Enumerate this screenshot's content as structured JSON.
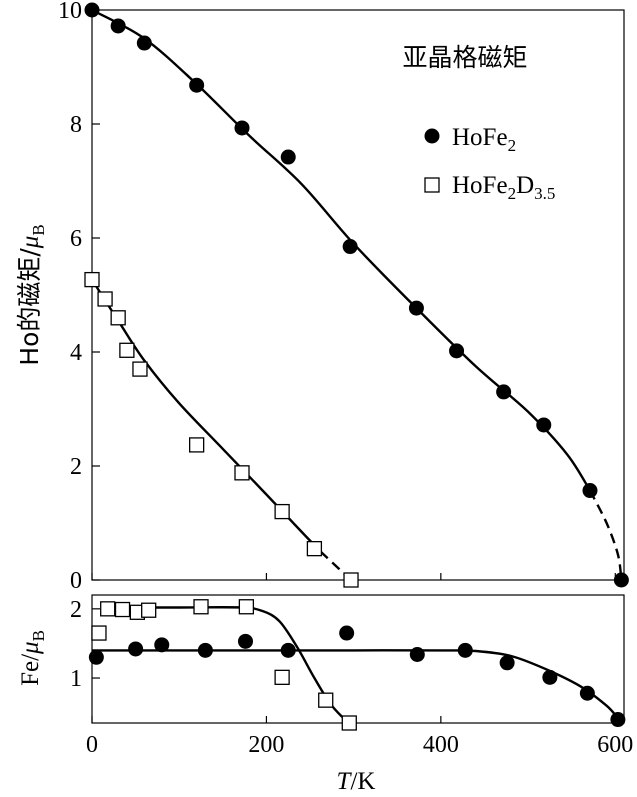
{
  "chart_data": [
    {
      "type": "scatter",
      "title": "亚晶格磁矩",
      "ylabel_main": "Ho的磁矩/",
      "ylabel_unit": "μ",
      "ylabel_sub": "B",
      "xlim": [
        0,
        610
      ],
      "ylim": [
        0,
        10
      ],
      "yticks": [
        "0",
        "2",
        "4",
        "6",
        "8",
        "10"
      ],
      "grid": false,
      "legend_position": "top-right",
      "series": [
        {
          "name": "HoFe2",
          "legend_base": "HoFe",
          "legend_sub": "2",
          "marker": "filled-circle",
          "points": [
            {
              "x": 0,
              "y": 10.0
            },
            {
              "x": 30,
              "y": 9.72
            },
            {
              "x": 60,
              "y": 9.42
            },
            {
              "x": 120,
              "y": 8.68
            },
            {
              "x": 172,
              "y": 7.93
            },
            {
              "x": 225,
              "y": 7.42
            },
            {
              "x": 296,
              "y": 5.85
            },
            {
              "x": 372,
              "y": 4.77
            },
            {
              "x": 418,
              "y": 4.02
            },
            {
              "x": 472,
              "y": 3.3
            },
            {
              "x": 518,
              "y": 2.72
            },
            {
              "x": 571,
              "y": 1.57
            },
            {
              "x": 607,
              "y": 0.0
            }
          ],
          "fit_solid": [
            [
              0,
              10.0
            ],
            [
              60,
              9.5
            ],
            [
              120,
              8.7
            ],
            [
              180,
              7.8
            ],
            [
              240,
              6.95
            ],
            [
              300,
              5.9
            ],
            [
              370,
              4.8
            ],
            [
              440,
              3.75
            ],
            [
              500,
              2.95
            ],
            [
              545,
              2.2
            ],
            [
              571,
              1.57
            ]
          ],
          "fit_dashed": [
            [
              571,
              1.57
            ],
            [
              590,
              1.0
            ],
            [
              603,
              0.45
            ],
            [
              607,
              0.0
            ]
          ]
        },
        {
          "name": "HoFe2D3.5",
          "legend_base": "HoFe",
          "legend_sub": "2",
          "legend_base2": "D",
          "legend_sub2": "3.5",
          "marker": "open-square",
          "points": [
            {
              "x": 0,
              "y": 5.27
            },
            {
              "x": 15,
              "y": 4.93
            },
            {
              "x": 30,
              "y": 4.6
            },
            {
              "x": 40,
              "y": 4.03
            },
            {
              "x": 55,
              "y": 3.7
            },
            {
              "x": 120,
              "y": 2.37
            },
            {
              "x": 172,
              "y": 1.88
            },
            {
              "x": 218,
              "y": 1.2
            },
            {
              "x": 255,
              "y": 0.55
            },
            {
              "x": 297,
              "y": 0.0
            }
          ],
          "fit_solid": [
            [
              0,
              5.27
            ],
            [
              30,
              4.55
            ],
            [
              60,
              3.85
            ],
            [
              100,
              3.1
            ],
            [
              150,
              2.3
            ],
            [
              200,
              1.5
            ],
            [
              240,
              0.85
            ],
            [
              262,
              0.5
            ]
          ],
          "fit_dashed": [
            [
              262,
              0.5
            ],
            [
              283,
              0.2
            ],
            [
              297,
              0.0
            ]
          ]
        }
      ]
    },
    {
      "type": "scatter",
      "ylabel_main": "Fe/",
      "ylabel_unit": "μ",
      "ylabel_sub": "B",
      "xlabel_italic": "T",
      "xlabel_rest": "/K",
      "xlim": [
        0,
        610
      ],
      "ylim": [
        0.35,
        2.2
      ],
      "xticks": [
        "0",
        "200",
        "400",
        "600"
      ],
      "yticks": [
        "1",
        "2"
      ],
      "grid": false,
      "series": [
        {
          "name": "HoFe2",
          "marker": "filled-circle",
          "points": [
            {
              "x": 5,
              "y": 1.3
            },
            {
              "x": 50,
              "y": 1.42
            },
            {
              "x": 80,
              "y": 1.48
            },
            {
              "x": 130,
              "y": 1.4
            },
            {
              "x": 176,
              "y": 1.53
            },
            {
              "x": 225,
              "y": 1.4
            },
            {
              "x": 292,
              "y": 1.65
            },
            {
              "x": 373,
              "y": 1.34
            },
            {
              "x": 428,
              "y": 1.4
            },
            {
              "x": 476,
              "y": 1.22
            },
            {
              "x": 525,
              "y": 1.01
            },
            {
              "x": 568,
              "y": 0.78
            },
            {
              "x": 603,
              "y": 0.4
            }
          ],
          "fit_solid": [
            [
              0,
              1.4
            ],
            [
              100,
              1.4
            ],
            [
              200,
              1.4
            ],
            [
              300,
              1.4
            ],
            [
              400,
              1.4
            ],
            [
              440,
              1.39
            ],
            [
              480,
              1.32
            ],
            [
              520,
              1.13
            ],
            [
              560,
              0.88
            ],
            [
              590,
              0.6
            ],
            [
              603,
              0.42
            ]
          ]
        },
        {
          "name": "HoFe2D3.5",
          "marker": "open-square",
          "points": [
            {
              "x": 8,
              "y": 1.65
            },
            {
              "x": 18,
              "y": 2.0
            },
            {
              "x": 35,
              "y": 1.99
            },
            {
              "x": 52,
              "y": 1.95
            },
            {
              "x": 65,
              "y": 1.98
            },
            {
              "x": 125,
              "y": 2.03
            },
            {
              "x": 177,
              "y": 2.03
            },
            {
              "x": 218,
              "y": 1.01
            },
            {
              "x": 268,
              "y": 0.68
            },
            {
              "x": 295,
              "y": 0.35
            }
          ],
          "fit_solid": [
            [
              15,
              2.02
            ],
            [
              100,
              2.02
            ],
            [
              170,
              2.02
            ],
            [
              195,
              1.97
            ],
            [
              215,
              1.82
            ],
            [
              235,
              1.45
            ],
            [
              255,
              1.0
            ],
            [
              272,
              0.65
            ],
            [
              286,
              0.45
            ],
            [
              295,
              0.37
            ]
          ]
        }
      ]
    }
  ]
}
